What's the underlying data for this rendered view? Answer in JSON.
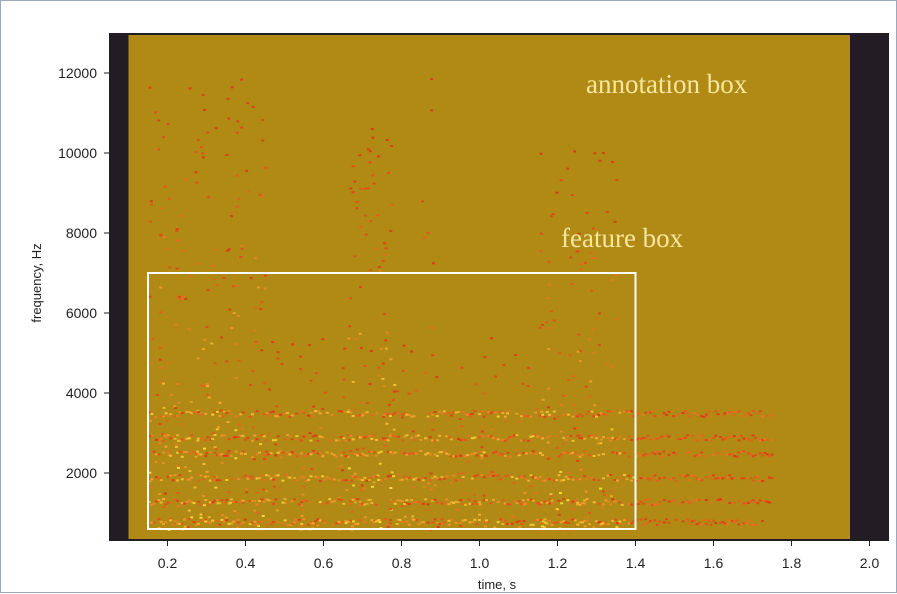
{
  "chart_data": {
    "type": "heatmap",
    "title": "",
    "xlabel": "time, s",
    "ylabel": "frequency, Hz",
    "xlim": [
      0.05,
      2.05
    ],
    "ylim": [
      300,
      13000
    ],
    "x_ticks": [
      0.2,
      0.4,
      0.6,
      0.8,
      1.0,
      1.2,
      1.4,
      1.6,
      1.8,
      2.0
    ],
    "x_tick_labels": [
      "0.2",
      "0.4",
      "0.6",
      "0.8",
      "1.0",
      "1.2",
      "1.4",
      "1.6",
      "1.8",
      "2.0"
    ],
    "y_ticks": [
      2000,
      4000,
      6000,
      8000,
      10000,
      12000
    ],
    "y_tick_labels": [
      "2000",
      "4000",
      "6000",
      "8000",
      "10000",
      "12000"
    ],
    "annotation_box": {
      "label": "annotation box",
      "x": [
        0.1,
        1.95
      ],
      "y": [
        300,
        13000
      ]
    },
    "feature_box": {
      "label": "feature box",
      "x": [
        0.15,
        1.4
      ],
      "y": [
        600,
        7000
      ]
    },
    "energy_components": [
      {
        "t": [
          0.15,
          0.45
        ],
        "f": [
          600,
          12000
        ],
        "level": 0.8
      },
      {
        "t": [
          0.66,
          0.78
        ],
        "f": [
          600,
          10800
        ],
        "level": 0.85
      },
      {
        "t": [
          0.85,
          0.88
        ],
        "f": [
          600,
          12400
        ],
        "level": 0.4
      },
      {
        "t": [
          1.15,
          1.35
        ],
        "f": [
          600,
          10200
        ],
        "level": 0.75
      },
      {
        "t": [
          0.45,
          1.15
        ],
        "f": [
          600,
          5500
        ],
        "level": 0.55
      }
    ],
    "harmonic_bands_hz": [
      800,
      1300,
      1900,
      2500,
      2900,
      3500
    ],
    "colors": {
      "background": "#b08a14",
      "outer_frame": "#221c24",
      "energy_low": "#e03010",
      "energy_high": "#ffe640",
      "box_outline": "#ffffff",
      "annotation_text": "#f6e7a0"
    }
  }
}
